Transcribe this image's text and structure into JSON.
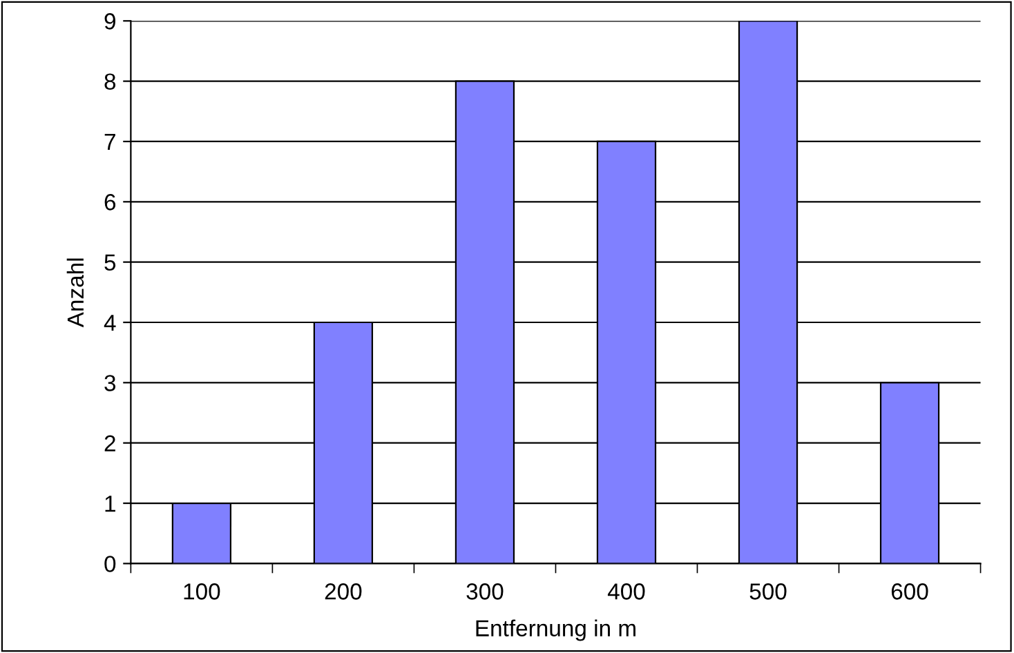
{
  "chart_data": {
    "type": "bar",
    "xlabel": "Entfernung in m",
    "ylabel": "Anzahl",
    "categories": [
      "100",
      "200",
      "300",
      "400",
      "500",
      "600"
    ],
    "values": [
      1,
      4,
      8,
      7,
      9,
      3
    ],
    "color": "#8080ff",
    "ylim": [
      0,
      9
    ],
    "yticks": [
      0,
      1,
      2,
      3,
      4,
      5,
      6,
      7,
      8,
      9
    ],
    "grid": "y",
    "legend": false
  }
}
